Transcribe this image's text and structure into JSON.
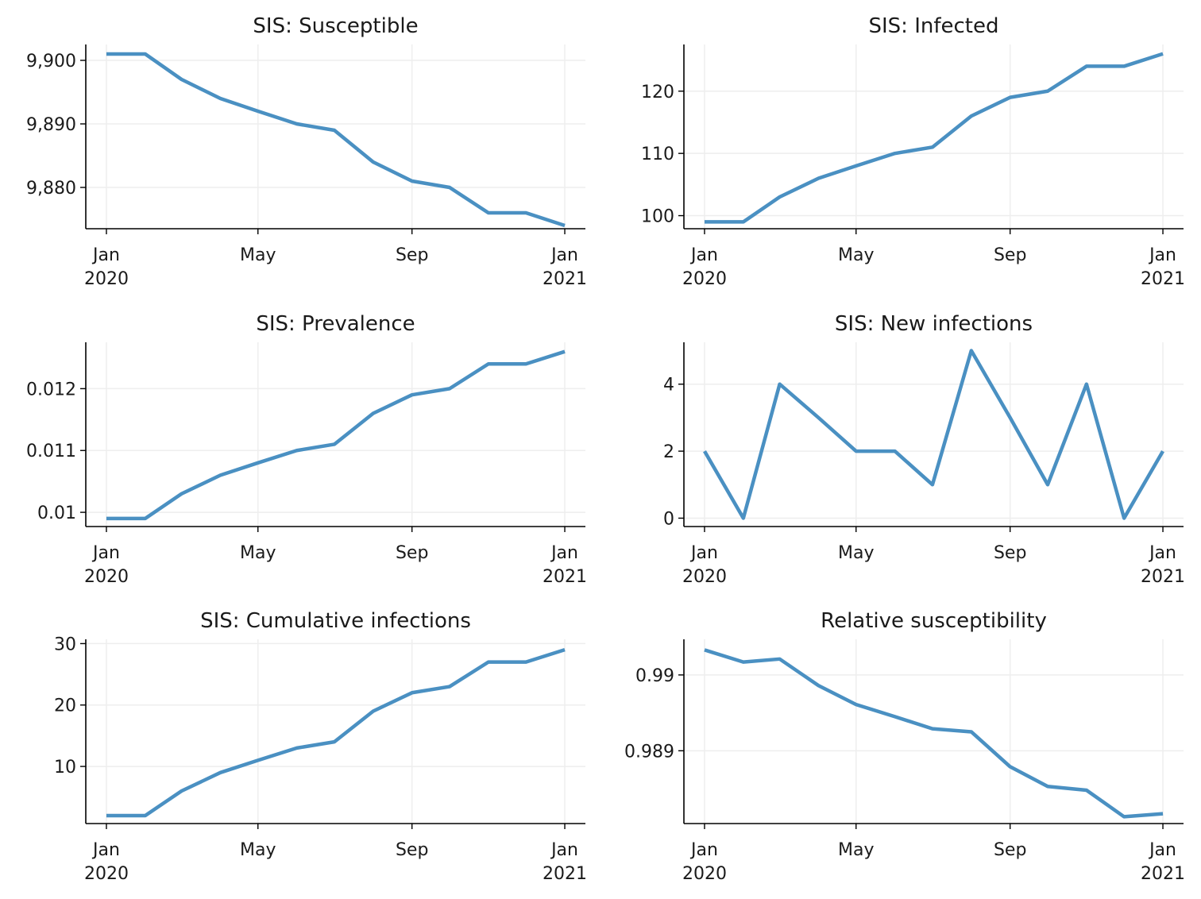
{
  "style": {
    "line_color": "#4a90c2",
    "grid": true
  },
  "x_ticks": [
    {
      "date": "2020-01-01",
      "month": "Jan",
      "year": "2020"
    },
    {
      "date": "2020-05-01",
      "month": "May",
      "year": ""
    },
    {
      "date": "2020-09-01",
      "month": "Sep",
      "year": ""
    },
    {
      "date": "2021-01-01",
      "month": "Jan",
      "year": "2021"
    }
  ],
  "chart_data": [
    {
      "type": "line",
      "title": "SIS: Susceptible",
      "x": [
        "2020-01-01",
        "2020-02-01",
        "2020-03-01",
        "2020-04-01",
        "2020-05-01",
        "2020-06-01",
        "2020-07-01",
        "2020-08-01",
        "2020-09-01",
        "2020-10-01",
        "2020-11-01",
        "2020-12-01",
        "2021-01-01"
      ],
      "values": [
        9901,
        9901,
        9897,
        9894,
        9892,
        9890,
        9889,
        9884,
        9881,
        9880,
        9876,
        9876,
        9874
      ],
      "ylim": [
        9873.5,
        9902.5
      ],
      "yticks": [
        9880,
        9890,
        9900
      ],
      "ytick_labels": [
        "9,880",
        "9,890",
        "9,900"
      ]
    },
    {
      "type": "line",
      "title": "SIS: Infected",
      "x": [
        "2020-01-01",
        "2020-02-01",
        "2020-03-01",
        "2020-04-01",
        "2020-05-01",
        "2020-06-01",
        "2020-07-01",
        "2020-08-01",
        "2020-09-01",
        "2020-10-01",
        "2020-11-01",
        "2020-12-01",
        "2021-01-01"
      ],
      "values": [
        99,
        99,
        103,
        106,
        108,
        110,
        111,
        116,
        119,
        120,
        124,
        124,
        126
      ],
      "ylim": [
        97.9,
        127.5
      ],
      "yticks": [
        100,
        110,
        120
      ],
      "ytick_labels": [
        "100",
        "110",
        "120"
      ]
    },
    {
      "type": "line",
      "title": "SIS: Prevalence",
      "x": [
        "2020-01-01",
        "2020-02-01",
        "2020-03-01",
        "2020-04-01",
        "2020-05-01",
        "2020-06-01",
        "2020-07-01",
        "2020-08-01",
        "2020-09-01",
        "2020-10-01",
        "2020-11-01",
        "2020-12-01",
        "2021-01-01"
      ],
      "values": [
        0.0099,
        0.0099,
        0.0103,
        0.0106,
        0.0108,
        0.011,
        0.0111,
        0.0116,
        0.0119,
        0.012,
        0.0124,
        0.0124,
        0.0126
      ],
      "ylim": [
        0.00977,
        0.01275
      ],
      "yticks": [
        0.01,
        0.011,
        0.012
      ],
      "ytick_labels": [
        "0.01",
        "0.011",
        "0.012"
      ]
    },
    {
      "type": "line",
      "title": "SIS: New infections",
      "x": [
        "2020-01-01",
        "2020-02-01",
        "2020-03-01",
        "2020-04-01",
        "2020-05-01",
        "2020-06-01",
        "2020-07-01",
        "2020-08-01",
        "2020-09-01",
        "2020-10-01",
        "2020-11-01",
        "2020-12-01",
        "2021-01-01"
      ],
      "values": [
        2,
        0,
        4,
        3,
        2,
        2,
        1,
        5,
        3,
        1,
        4,
        0,
        2
      ],
      "ylim": [
        -0.25,
        5.25
      ],
      "yticks": [
        0,
        2,
        4
      ],
      "ytick_labels": [
        "0",
        "2",
        "4"
      ]
    },
    {
      "type": "line",
      "title": "SIS: Cumulative infections",
      "x": [
        "2020-01-01",
        "2020-02-01",
        "2020-03-01",
        "2020-04-01",
        "2020-05-01",
        "2020-06-01",
        "2020-07-01",
        "2020-08-01",
        "2020-09-01",
        "2020-10-01",
        "2020-11-01",
        "2020-12-01",
        "2021-01-01"
      ],
      "values": [
        2,
        2,
        6,
        9,
        11,
        13,
        14,
        19,
        22,
        23,
        27,
        27,
        29
      ],
      "ylim": [
        0.7,
        30.7
      ],
      "yticks": [
        10,
        20,
        30
      ],
      "ytick_labels": [
        "10",
        "20",
        "30"
      ]
    },
    {
      "type": "line",
      "title": "Relative susceptibility",
      "x": [
        "2020-01-01",
        "2020-02-01",
        "2020-03-01",
        "2020-04-01",
        "2020-05-01",
        "2020-06-01",
        "2020-07-01",
        "2020-08-01",
        "2020-09-01",
        "2020-10-01",
        "2020-11-01",
        "2020-12-01",
        "2021-01-01"
      ],
      "values": [
        0.99033,
        0.99017,
        0.99021,
        0.98986,
        0.98961,
        0.98945,
        0.98929,
        0.98925,
        0.98879,
        0.98853,
        0.98848,
        0.98813,
        0.98817
      ],
      "ylim": [
        0.98804,
        0.99047
      ],
      "yticks": [
        0.989,
        0.99
      ],
      "ytick_labels": [
        "0.989",
        "0.99"
      ]
    }
  ]
}
